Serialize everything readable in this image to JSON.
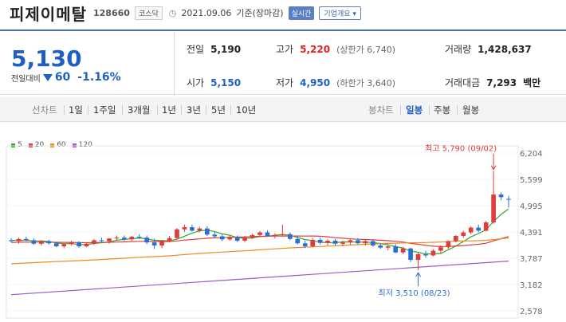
{
  "header": {
    "name": "피제이메탈",
    "code": "128660",
    "market": "코스닥",
    "date": "2021.09.06",
    "basis": "기준(장마감)",
    "live": "실시간",
    "info_button": "기업개요"
  },
  "price": {
    "current": "5,130",
    "change_label": "전일대비",
    "change": "60",
    "change_pct": "-1.16%"
  },
  "stats": {
    "prev_label": "전일",
    "prev": "5,190",
    "high_label": "고가",
    "high": "5,220",
    "upper": "(상한가 6,740)",
    "volume_label": "거래량",
    "volume": "1,428,637",
    "open_label": "시가",
    "open": "5,150",
    "low_label": "저가",
    "low": "4,950",
    "lower": "(하한가 3,640)",
    "amount_label": "거래대금",
    "amount": "7,293",
    "amount_unit": "백만"
  },
  "tabs": {
    "line_label": "선차트",
    "periods": [
      "1일",
      "1주일",
      "3개월",
      "1년",
      "3년",
      "5년",
      "10년"
    ],
    "candle_label": "봉차트",
    "candles": [
      "일봉",
      "주봉",
      "월봉"
    ]
  },
  "chart_data": {
    "type": "candlestick",
    "legend": [
      {
        "name": "5",
        "color": "#2eaa2e"
      },
      {
        "name": "20",
        "color": "#e03c3c"
      },
      {
        "name": "60",
        "color": "#f08a1a"
      },
      {
        "name": "120",
        "color": "#9b5cc7"
      }
    ],
    "y_ticks": [
      6204,
      5599,
      4995,
      4391,
      3787,
      3182,
      2578
    ],
    "ylim": [
      2578,
      6204
    ],
    "annotations": {
      "max_label": "최고 5,790 (09/02)",
      "min_label": "최저 3,510 (08/23)"
    },
    "candles": [
      [
        4200,
        4250,
        4150,
        4180
      ],
      [
        4180,
        4260,
        4120,
        4230
      ],
      [
        4230,
        4280,
        4180,
        4200
      ],
      [
        4200,
        4240,
        4100,
        4120
      ],
      [
        4120,
        4200,
        4080,
        4180
      ],
      [
        4180,
        4210,
        4100,
        4130
      ],
      [
        4130,
        4160,
        4040,
        4060
      ],
      [
        4060,
        4130,
        4020,
        4110
      ],
      [
        4110,
        4190,
        4080,
        4150
      ],
      [
        4150,
        4180,
        4030,
        4060
      ],
      [
        4060,
        4150,
        4040,
        4120
      ],
      [
        4120,
        4230,
        4090,
        4200
      ],
      [
        4200,
        4260,
        4150,
        4180
      ],
      [
        4180,
        4250,
        4120,
        4240
      ],
      [
        4240,
        4310,
        4190,
        4260
      ],
      [
        4260,
        4310,
        4180,
        4220
      ],
      [
        4220,
        4300,
        4190,
        4280
      ],
      [
        4280,
        4340,
        4230,
        4260
      ],
      [
        4260,
        4310,
        4110,
        4150
      ],
      [
        4150,
        4240,
        4000,
        4080
      ],
      [
        4080,
        4210,
        4020,
        4190
      ],
      [
        4190,
        4300,
        4150,
        4250
      ],
      [
        4250,
        4480,
        4220,
        4450
      ],
      [
        4450,
        4560,
        4390,
        4500
      ],
      [
        4500,
        4560,
        4400,
        4420
      ],
      [
        4420,
        4510,
        4380,
        4470
      ],
      [
        4470,
        4520,
        4300,
        4330
      ],
      [
        4330,
        4390,
        4250,
        4290
      ],
      [
        4290,
        4330,
        4180,
        4220
      ],
      [
        4220,
        4300,
        4190,
        4270
      ],
      [
        4270,
        4310,
        4160,
        4190
      ],
      [
        4190,
        4300,
        4150,
        4260
      ],
      [
        4260,
        4350,
        4230,
        4320
      ],
      [
        4320,
        4410,
        4280,
        4380
      ],
      [
        4380,
        4430,
        4280,
        4300
      ],
      [
        4300,
        4360,
        4240,
        4320
      ],
      [
        4320,
        4560,
        4280,
        4340
      ],
      [
        4340,
        4380,
        4200,
        4230
      ],
      [
        4230,
        4290,
        4100,
        4130
      ],
      [
        4130,
        4190,
        4020,
        4060
      ],
      [
        4060,
        4250,
        4030,
        4210
      ],
      [
        4210,
        4260,
        4100,
        4140
      ],
      [
        4140,
        4220,
        4080,
        4190
      ],
      [
        4190,
        4230,
        4080,
        4120
      ],
      [
        4120,
        4190,
        4060,
        4150
      ],
      [
        4150,
        4240,
        4100,
        4200
      ],
      [
        4200,
        4250,
        4110,
        4130
      ],
      [
        4130,
        4210,
        4080,
        4180
      ],
      [
        4180,
        4220,
        4050,
        4080
      ],
      [
        4080,
        4140,
        4000,
        4030
      ],
      [
        4030,
        4100,
        3970,
        4060
      ],
      [
        4060,
        4110,
        3900,
        3920
      ],
      [
        3920,
        4050,
        3880,
        4010
      ],
      [
        4010,
        4030,
        3700,
        3750
      ],
      [
        3750,
        3920,
        3510,
        3880
      ],
      [
        3880,
        3960,
        3800,
        3850
      ],
      [
        3850,
        3990,
        3830,
        3960
      ],
      [
        3960,
        4080,
        3900,
        4040
      ],
      [
        4040,
        4200,
        4000,
        4180
      ],
      [
        4180,
        4320,
        4150,
        4300
      ],
      [
        4300,
        4420,
        4260,
        4380
      ],
      [
        4380,
        4520,
        4340,
        4490
      ],
      [
        4490,
        4560,
        4380,
        4420
      ],
      [
        4420,
        4640,
        4400,
        4610
      ],
      [
        4610,
        5790,
        4580,
        5250
      ],
      [
        5250,
        5300,
        5120,
        5190
      ],
      [
        5150,
        5220,
        4950,
        5130
      ]
    ]
  }
}
